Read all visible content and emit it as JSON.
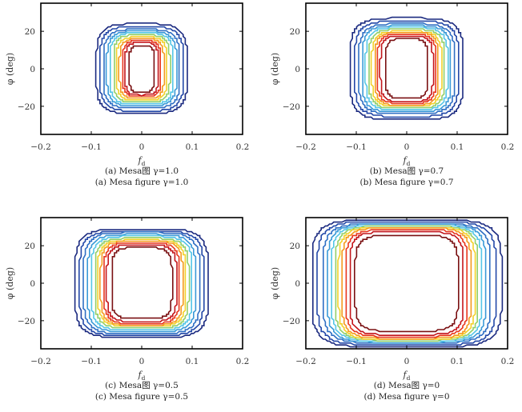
{
  "chart_data": [
    {
      "type": "contour",
      "panel_id": "a",
      "title": "",
      "caption_cn": "(a) Mesa图 γ=1.0",
      "caption_en": "(a) Mesa figure γ=1.0",
      "gamma": 1.0,
      "xlabel": "f_d",
      "ylabel": "φ (deg)",
      "xlim": [
        -0.2,
        0.2
      ],
      "ylim": [
        -35,
        35
      ],
      "xticks": [
        -0.2,
        -0.1,
        0,
        0.1,
        0.2
      ],
      "xtick_labels": [
        "−0.2",
        "−0.1",
        "0",
        "0.1",
        "0.2"
      ],
      "yticks": [
        20,
        0,
        -20
      ],
      "ytick_labels": [
        "20",
        "0",
        "−20"
      ],
      "levels": [
        {
          "color": "#1b2a80",
          "half_width": 0.09,
          "half_height": 24
        },
        {
          "color": "#2348a8",
          "half_width": 0.083,
          "half_height": 22.5
        },
        {
          "color": "#2f6fc4",
          "half_width": 0.076,
          "half_height": 21
        },
        {
          "color": "#3a9ad8",
          "half_width": 0.069,
          "half_height": 20
        },
        {
          "color": "#55c6e6",
          "half_width": 0.063,
          "half_height": 19
        },
        {
          "color": "#92cf6a",
          "half_width": 0.056,
          "half_height": 18
        },
        {
          "color": "#f2d22a",
          "half_width": 0.05,
          "half_height": 17
        },
        {
          "color": "#f59a1e",
          "half_width": 0.044,
          "half_height": 16
        },
        {
          "color": "#e8361d",
          "half_width": 0.038,
          "half_height": 15
        },
        {
          "color": "#c4161c",
          "half_width": 0.033,
          "half_height": 14
        },
        {
          "color": "#7a1012",
          "half_width": 0.025,
          "half_height": 12.5
        }
      ]
    },
    {
      "type": "contour",
      "panel_id": "b",
      "title": "",
      "caption_cn": "(b) Mesa图 γ=0.7",
      "caption_en": "(b) Mesa figure γ=0.7",
      "gamma": 0.7,
      "xlabel": "f_d",
      "ylabel": "φ (deg)",
      "xlim": [
        -0.2,
        0.2
      ],
      "ylim": [
        -35,
        35
      ],
      "xticks": [
        -0.2,
        -0.1,
        0,
        0.1,
        0.2
      ],
      "xtick_labels": [
        "−0.2",
        "−0.1",
        "0",
        "0.1",
        "0.2"
      ],
      "yticks": [
        20,
        0,
        -20
      ],
      "ytick_labels": [
        "20",
        "0",
        "−20"
      ],
      "levels": [
        {
          "color": "#1b2a80",
          "half_width": 0.112,
          "half_height": 27
        },
        {
          "color": "#2348a8",
          "half_width": 0.103,
          "half_height": 25.5
        },
        {
          "color": "#2f6fc4",
          "half_width": 0.095,
          "half_height": 24
        },
        {
          "color": "#3a9ad8",
          "half_width": 0.088,
          "half_height": 23
        },
        {
          "color": "#55c6e6",
          "half_width": 0.081,
          "half_height": 22
        },
        {
          "color": "#92cf6a",
          "half_width": 0.075,
          "half_height": 21
        },
        {
          "color": "#f2d22a",
          "half_width": 0.069,
          "half_height": 20
        },
        {
          "color": "#f59a1e",
          "half_width": 0.063,
          "half_height": 19.5
        },
        {
          "color": "#e8361d",
          "half_width": 0.058,
          "half_height": 18.5
        },
        {
          "color": "#c4161c",
          "half_width": 0.052,
          "half_height": 17.5
        },
        {
          "color": "#7a1012",
          "half_width": 0.042,
          "half_height": 16
        }
      ]
    },
    {
      "type": "contour",
      "panel_id": "c",
      "title": "",
      "caption_cn": "(c) Mesa图 γ=0.5",
      "caption_en": "(c) Mesa figure γ=0.5",
      "gamma": 0.5,
      "xlabel": "f_d",
      "ylabel": "φ (deg)",
      "xlim": [
        -0.2,
        0.2
      ],
      "ylim": [
        -35,
        35
      ],
      "xticks": [
        -0.2,
        -0.1,
        0,
        0.1,
        0.2
      ],
      "xtick_labels": [
        "−0.2",
        "−0.1",
        "0",
        "0.1",
        "0.2"
      ],
      "yticks": [
        20,
        0,
        -20
      ],
      "ytick_labels": [
        "20",
        "0",
        "−20"
      ],
      "levels": [
        {
          "color": "#1b2a80",
          "half_width": 0.132,
          "half_height": 29
        },
        {
          "color": "#2348a8",
          "half_width": 0.123,
          "half_height": 28
        },
        {
          "color": "#2f6fc4",
          "half_width": 0.115,
          "half_height": 27
        },
        {
          "color": "#3a9ad8",
          "half_width": 0.107,
          "half_height": 26
        },
        {
          "color": "#55c6e6",
          "half_width": 0.1,
          "half_height": 25
        },
        {
          "color": "#92cf6a",
          "half_width": 0.093,
          "half_height": 24
        },
        {
          "color": "#f2d22a",
          "half_width": 0.087,
          "half_height": 23
        },
        {
          "color": "#f59a1e",
          "half_width": 0.081,
          "half_height": 22.5
        },
        {
          "color": "#e8361d",
          "half_width": 0.075,
          "half_height": 21.5
        },
        {
          "color": "#c4161c",
          "half_width": 0.069,
          "half_height": 20.5
        },
        {
          "color": "#7a1012",
          "half_width": 0.06,
          "half_height": 19
        }
      ]
    },
    {
      "type": "contour",
      "panel_id": "d",
      "title": "",
      "caption_cn": "(d) Mesa图 γ=0",
      "caption_en": "(d) Mesa figure γ=0",
      "gamma": 0,
      "xlabel": "f_d",
      "ylabel": "φ (deg)",
      "xlim": [
        -0.2,
        0.2
      ],
      "ylim": [
        -35,
        35
      ],
      "xticks": [
        -0.2,
        -0.1,
        0,
        0.1,
        0.2
      ],
      "xtick_labels": [
        "−0.2",
        "−0.1",
        "0",
        "0.1",
        "0.2"
      ],
      "yticks": [
        20,
        0,
        -20
      ],
      "ytick_labels": [
        "20",
        "0",
        "−20"
      ],
      "levels": [
        {
          "color": "#1b2a80",
          "half_width": 0.188,
          "half_height": 34
        },
        {
          "color": "#2348a8",
          "half_width": 0.177,
          "half_height": 33
        },
        {
          "color": "#2f6fc4",
          "half_width": 0.166,
          "half_height": 32
        },
        {
          "color": "#3a9ad8",
          "half_width": 0.157,
          "half_height": 31.5
        },
        {
          "color": "#55c6e6",
          "half_width": 0.149,
          "half_height": 31
        },
        {
          "color": "#92cf6a",
          "half_width": 0.142,
          "half_height": 30.5
        },
        {
          "color": "#f2d22a",
          "half_width": 0.135,
          "half_height": 30
        },
        {
          "color": "#f59a1e",
          "half_width": 0.128,
          "half_height": 29.5
        },
        {
          "color": "#e8361d",
          "half_width": 0.121,
          "half_height": 28.5
        },
        {
          "color": "#c4161c",
          "half_width": 0.113,
          "half_height": 27.5
        },
        {
          "color": "#7a1012",
          "half_width": 0.102,
          "half_height": 25.5
        }
      ]
    }
  ]
}
